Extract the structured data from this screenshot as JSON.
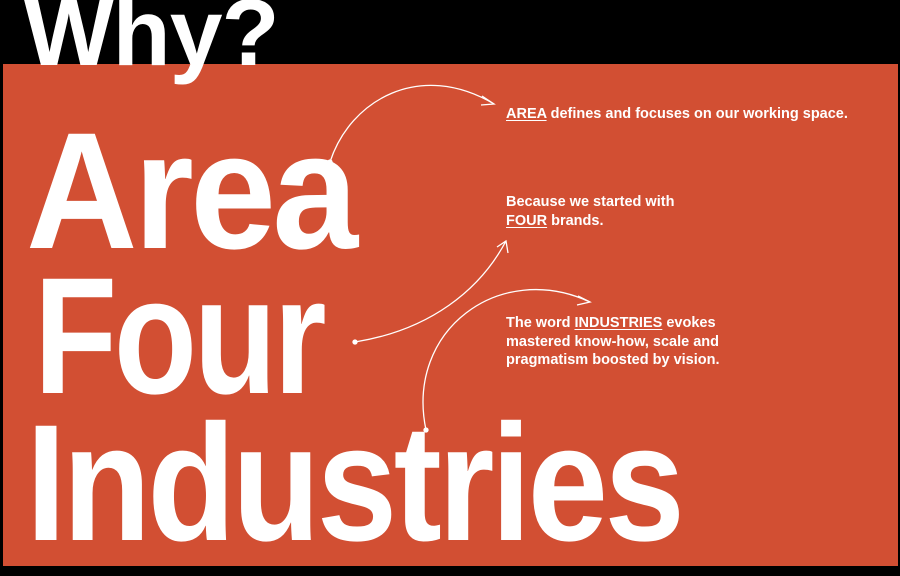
{
  "header": {
    "title": "Why?"
  },
  "headline": {
    "line1": "Area",
    "line2": "Four",
    "line3": "Industries"
  },
  "notes": [
    {
      "keyword": "AREA",
      "before": "",
      "after": " defines and focuses on our working space."
    },
    {
      "before": "Because we started with ",
      "keyword": "FOUR",
      "after": " brands."
    },
    {
      "before": "The word ",
      "keyword": "INDUSTRIES",
      "after": " evokes mastered know-how, scale and pragmatism boosted by vision."
    }
  ],
  "colors": {
    "background": "#000000",
    "panel": "#d24f33",
    "text": "#ffffff"
  },
  "icons": [
    "arrow-icon",
    "arrow-icon",
    "arrow-icon"
  ]
}
